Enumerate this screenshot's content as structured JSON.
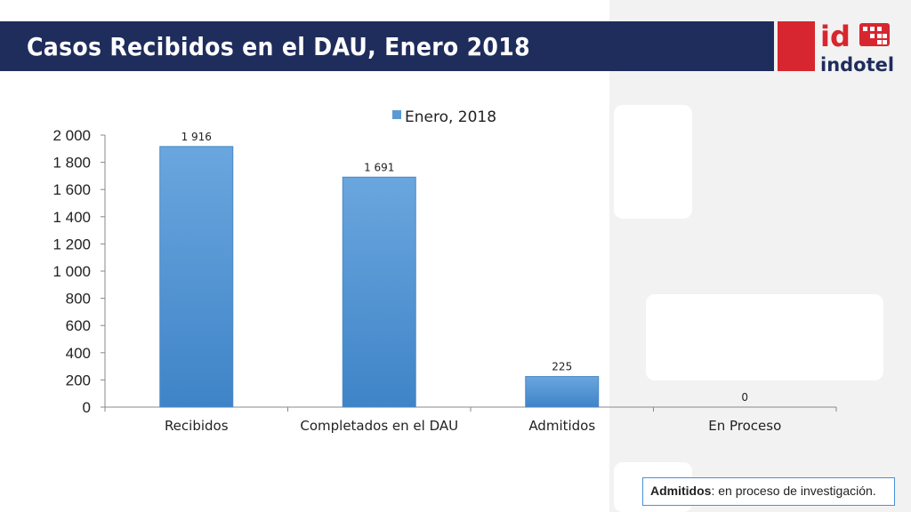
{
  "title": "Casos Recibidos en el DAU, Enero 2018",
  "logo": {
    "mark": "id",
    "name": "indotel"
  },
  "note": {
    "term": "Admitidos",
    "text": ": en proceso de investigación."
  },
  "colors": {
    "title_bar": "#1f2d5c",
    "bar": "#5b9bd5",
    "logo_red": "#d7262f"
  },
  "chart_data": {
    "type": "bar",
    "categories": [
      "Recibidos",
      "Completados en el DAU",
      "Admitidos",
      "En Proceso"
    ],
    "series": [
      {
        "name": "Enero, 2018",
        "values": [
          1916,
          1691,
          225,
          0
        ]
      }
    ],
    "data_labels": [
      "1 916",
      "1 691",
      "225",
      "0"
    ],
    "ylim": [
      0,
      2000
    ],
    "yticks": [
      0,
      200,
      400,
      600,
      800,
      1000,
      1200,
      1400,
      1600,
      1800,
      2000
    ],
    "ytick_labels": [
      "0",
      "200",
      "400",
      "600",
      "800",
      "1 000",
      "1 200",
      "1 400",
      "1 600",
      "1 800",
      "2 000"
    ],
    "legend": "top-center",
    "grid": false
  }
}
